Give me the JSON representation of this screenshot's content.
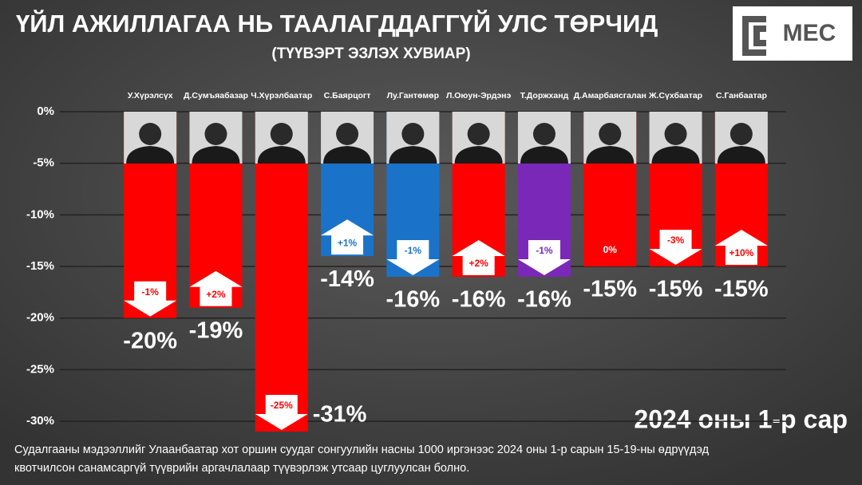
{
  "chart_data": {
    "type": "bar",
    "title": "ҮЙЛ АЖИЛЛАГАА НЬ ТААЛАГДДАГГҮЙ УЛС ТӨРЧИД",
    "subtitle": "(ТҮҮВЭРТ ЭЗЛЭХ ХУВИАР)",
    "logo": "MEC",
    "annotation": "2024 оны 1-р сар",
    "footnote": [
      "Судалгааны мэдээллийг Улаанбаатар хот оршин суудаг сонгуулийн насны 1000 иргэнээс 2024 оны 1-р сарын 15-19-ны өдрүүдэд",
      "квотчилсон санамсаргүй түүврийн аргачлалаар түүвэрлэж утсаар цуглуулсан болно."
    ],
    "categories": [
      "У.Хүрэлсүх",
      "Д.Сумъяабазар",
      "Ч.Хүрэлбаатар",
      "С.Баярцогт",
      "Лу.Гантөмөр",
      "Л.Оюун-Эрдэнэ",
      "Т.Доржханд",
      "Д.Амарбаясгалан",
      "Ж.Сүхбаатар",
      "С.Ганбаатар"
    ],
    "values": [
      -20,
      -19,
      -31,
      -14,
      -16,
      -16,
      -16,
      -15,
      -15,
      -15
    ],
    "value_labels": [
      "-20%",
      "-19%",
      "-31%",
      "-14%",
      "-16%",
      "-16%",
      "-16%",
      "-15%",
      "-15%",
      "-15%"
    ],
    "colors": [
      "#ff0000",
      "#ff0000",
      "#ff0000",
      "#1a73c9",
      "#1a73c9",
      "#ff0000",
      "#7a28b8",
      "#ff0000",
      "#ff0000",
      "#ff0000"
    ],
    "changes": [
      -1,
      2,
      -25,
      1,
      -1,
      2,
      -1,
      0,
      -3,
      10
    ],
    "change_labels": [
      "-1%",
      "+2%",
      "-25%",
      "+1%",
      "-1%",
      "+2%",
      "-1%",
      "0%",
      "-3%",
      "+10%"
    ],
    "ylim": [
      -31,
      0
    ],
    "yticks": [
      {
        "value": 0,
        "label": "0%"
      },
      {
        "value": -5,
        "label": "-5%"
      },
      {
        "value": -10,
        "label": "-10%"
      },
      {
        "value": -15,
        "label": "-15%"
      },
      {
        "value": -20,
        "label": "-20%"
      },
      {
        "value": -25,
        "label": "-25%"
      },
      {
        "value": -30,
        "label": "-30%"
      }
    ],
    "grid": true
  }
}
